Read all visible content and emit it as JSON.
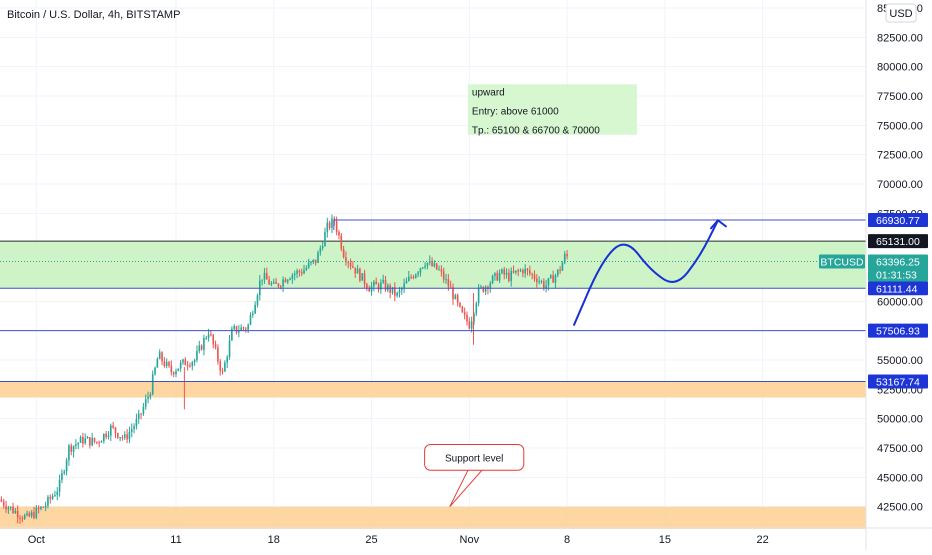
{
  "header": {
    "title": "Bitcoin / U.S. Dollar, 4h, BITSTAMP",
    "currency": "USD"
  },
  "chart_data": {
    "type": "candlestick",
    "ylim": [
      40000,
      85000
    ],
    "y_ticks": [
      "42500.00",
      "45000.00",
      "47500.00",
      "50000.00",
      "52500.00",
      "55000.00",
      "57500.00",
      "60000.00",
      "62500.00",
      "65000.00",
      "67500.00",
      "70000.00",
      "72500.00",
      "75000.00",
      "77500.00",
      "80000.00",
      "82500.00",
      "85000.00"
    ],
    "x_ticks": [
      {
        "label": "Oct",
        "day": 0
      },
      {
        "label": "11",
        "day": 10
      },
      {
        "label": "18",
        "day": 17
      },
      {
        "label": "25",
        "day": 24
      },
      {
        "label": "Nov",
        "day": 31
      },
      {
        "label": "8",
        "day": 38
      },
      {
        "label": "15",
        "day": 45
      },
      {
        "label": "22",
        "day": 52
      }
    ],
    "x_domain_days": [
      -2.6,
      59.4
    ],
    "ohlc_path": [
      [
        -2.5,
        43100
      ],
      [
        -1.5,
        42200
      ],
      [
        -0.5,
        41500
      ],
      [
        0.8,
        42600
      ],
      [
        1.8,
        44200
      ],
      [
        2.5,
        47500
      ],
      [
        3.5,
        48200
      ],
      [
        4.5,
        48000
      ],
      [
        5.5,
        49200
      ],
      [
        6.5,
        48300
      ],
      [
        7.5,
        50000
      ],
      [
        8.3,
        52300
      ],
      [
        8.9,
        55400
      ],
      [
        9.8,
        54000
      ],
      [
        10.8,
        54800
      ],
      [
        11.5,
        55000
      ],
      [
        12.5,
        57500
      ],
      [
        13.5,
        53800
      ],
      [
        14.2,
        57500
      ],
      [
        15.3,
        57800
      ],
      [
        16.3,
        62200
      ],
      [
        17.2,
        61200
      ],
      [
        18.2,
        62200
      ],
      [
        19.2,
        62600
      ],
      [
        20.2,
        63500
      ],
      [
        21.0,
        66300
      ],
      [
        21.5,
        66900
      ],
      [
        22.2,
        64000
      ],
      [
        23.0,
        62700
      ],
      [
        24.0,
        61200
      ],
      [
        25.0,
        61400
      ],
      [
        26.0,
        60500
      ],
      [
        27.0,
        62100
      ],
      [
        28.0,
        63400
      ],
      [
        29.0,
        62600
      ],
      [
        29.8,
        61100
      ],
      [
        30.6,
        58900
      ],
      [
        31.2,
        58000
      ],
      [
        31.8,
        60800
      ],
      [
        32.6,
        61600
      ],
      [
        33.4,
        62400
      ],
      [
        34.0,
        62100
      ],
      [
        35.0,
        62700
      ],
      [
        36.0,
        62000
      ],
      [
        36.6,
        61300
      ],
      [
        37.0,
        61800
      ],
      [
        37.6,
        62600
      ],
      [
        38.0,
        63800
      ]
    ],
    "pattern_seed": 7,
    "spikes": [
      {
        "day": 10.6,
        "low": 50800,
        "high": 54400
      },
      {
        "day": 31.3,
        "low": 56300,
        "high": 60700
      }
    ],
    "zones": [
      {
        "name": "resistance-zone",
        "y_low": 61111.44,
        "y_high": 65131.0,
        "color": "#c8f2c0",
        "border": "#2a2a2a"
      },
      {
        "name": "orange-zone-upper",
        "y_low": 51800,
        "y_high": 53167.74,
        "color": "#fdd197"
      },
      {
        "name": "orange-zone-lower",
        "y_low": 40600,
        "y_high": 42500,
        "color": "#fdd197"
      }
    ],
    "horizontal_lines": [
      {
        "name": "line-66930",
        "value": 66930.77,
        "day_from": 21.3,
        "color": "#3f51c9"
      },
      {
        "name": "line-61111",
        "value": 61111.44,
        "day_from": -2.6,
        "color": "#3f51c9"
      },
      {
        "name": "line-57506",
        "value": 57506.93,
        "day_from": -2.6,
        "color": "#3f51c9"
      },
      {
        "name": "line-53167",
        "value": 53167.74,
        "day_from": -2.6,
        "color": "#3f51c9"
      }
    ],
    "current_price_line": {
      "value": 63396.25,
      "color": "#26a69a"
    },
    "price_tags": [
      {
        "name": "price-tag-66930",
        "text": "66930.77",
        "value": 66930.77,
        "bg": "#1e35d6"
      },
      {
        "name": "price-tag-65131",
        "text": "65131.00",
        "value": 65131.0,
        "bg": "#131722"
      },
      {
        "name": "price-tag-61111",
        "text": "61111.44",
        "value": 61111.44,
        "bg": "#1e35d6"
      },
      {
        "name": "price-tag-57506",
        "text": "57506.93",
        "value": 57506.93,
        "bg": "#1e35d6"
      },
      {
        "name": "price-tag-53167",
        "text": "53167.74",
        "value": 53167.74,
        "bg": "#1e35d6"
      }
    ],
    "current_tag": {
      "symbol": "BTCUSD",
      "price": "63396.25",
      "countdown": "01:31:53",
      "value": 63396.25,
      "bg": "#26a69a"
    },
    "projection": {
      "color": "#1630d8",
      "points": [
        [
          38.5,
          58000
        ],
        [
          40.5,
          63500
        ],
        [
          42.2,
          65400
        ],
        [
          44.0,
          62600
        ],
        [
          45.8,
          61200
        ],
        [
          47.5,
          63800
        ],
        [
          48.8,
          66900
        ]
      ]
    },
    "note_box": {
      "lines": [
        "upward",
        "Entry: above 61000",
        "Tp.: 65100 & 66700 & 70000"
      ],
      "day_from": 30.9,
      "day_to": 43.0,
      "y_top": 78500,
      "y_bottom": 74200,
      "color": "#d6f7d0"
    },
    "callout": {
      "text": "Support level",
      "day_from": 27.8,
      "day_to": 34.9,
      "y_top": 47800,
      "y_bottom": 45600,
      "pointer": [
        [
          30.9,
          45600
        ],
        [
          29.6,
          42500
        ],
        [
          31.9,
          45600
        ]
      ],
      "color": "#e53935"
    },
    "up_color": "#26a69a",
    "down_color": "#ef5350"
  }
}
